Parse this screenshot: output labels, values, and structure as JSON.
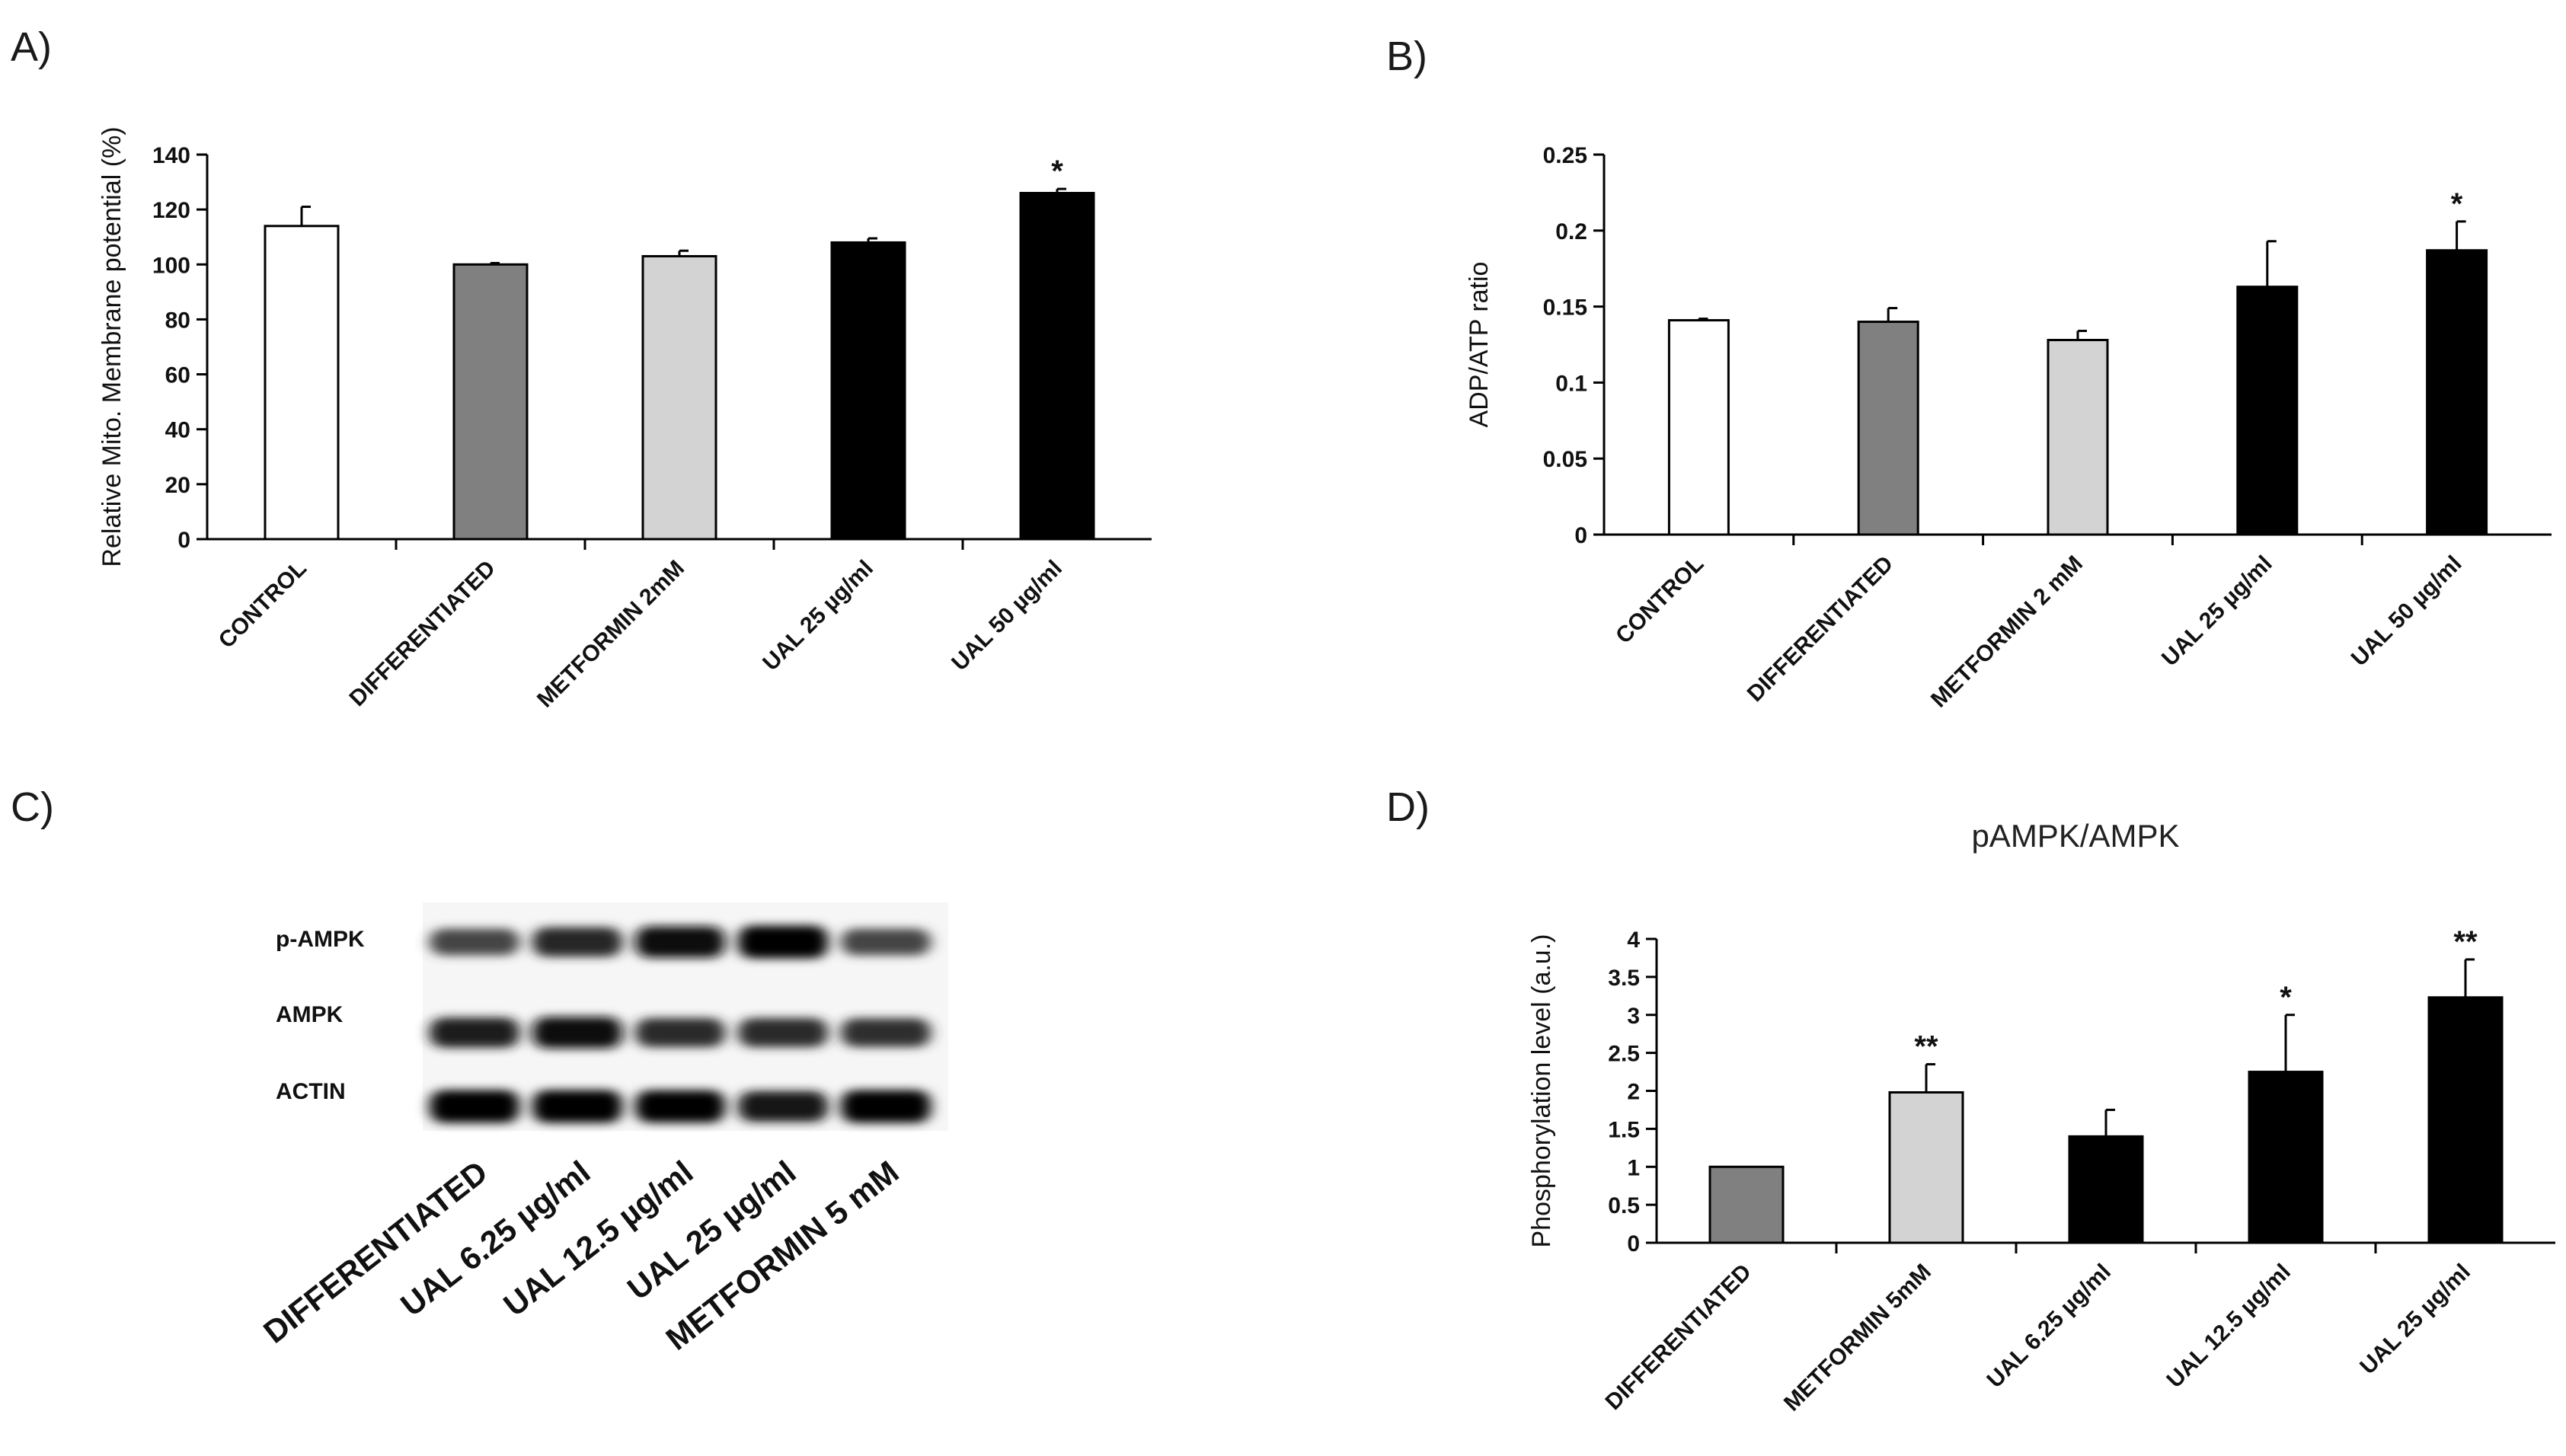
{
  "panel_labels": {
    "a": "A)",
    "b": "B)",
    "c": "C)",
    "d": "D)"
  },
  "chart_data": [
    {
      "panel": "A)",
      "type": "bar",
      "title": "",
      "xlabel": "",
      "ylabel": "Relative Mito. Membrane potential (%)",
      "ylim": [
        0,
        140
      ],
      "yticks": [
        0,
        20,
        40,
        60,
        80,
        100,
        120,
        140
      ],
      "grid": false,
      "categories": [
        "CONTROL",
        "DIFFERENTIATED",
        "METFORMIN 2mM",
        "UAL 25 µg/ml",
        "UAL 50 µg/ml"
      ],
      "values": [
        114,
        100,
        103,
        108,
        126
      ],
      "errors": [
        7,
        0.5,
        2,
        1.5,
        1.5
      ],
      "colors": [
        "#ffffff",
        "#808080",
        "#d3d3d3",
        "#000000",
        "#000000"
      ],
      "significance": [
        "",
        "",
        "",
        "",
        "*"
      ]
    },
    {
      "panel": "B)",
      "type": "bar",
      "title": "",
      "xlabel": "",
      "ylabel": "ADP/ATP ratio",
      "ylim": [
        0,
        0.25
      ],
      "yticks": [
        0,
        0.05,
        0.1,
        0.15,
        0.2,
        0.25
      ],
      "grid": false,
      "categories": [
        "CONTROL",
        "DIFFERENTIATED",
        "METFORMIN 2 mM",
        "UAL 25 µg/ml",
        "UAL 50 µg/ml"
      ],
      "values": [
        0.141,
        0.14,
        0.128,
        0.163,
        0.187
      ],
      "errors": [
        0.001,
        0.009,
        0.006,
        0.03,
        0.019
      ],
      "colors": [
        "#ffffff",
        "#808080",
        "#d3d3d3",
        "#000000",
        "#000000"
      ],
      "significance": [
        "",
        "",
        "",
        "",
        "*"
      ]
    },
    {
      "panel": "D)",
      "type": "bar",
      "title": "pAMPK/AMPK",
      "xlabel": "",
      "ylabel": "Phosphorylation level (a.u.)",
      "ylim": [
        0,
        4
      ],
      "yticks": [
        0,
        0.5,
        1,
        1.5,
        2,
        2.5,
        3,
        3.5,
        4
      ],
      "grid": false,
      "categories": [
        "DIFFERENTIATED",
        "METFORMIN 5mM",
        "UAL 6.25 µg/ml",
        "UAL 12.5 µg/ml",
        "UAL 25 µg/ml"
      ],
      "values": [
        1.0,
        1.98,
        1.4,
        2.25,
        3.23
      ],
      "errors": [
        0,
        0.37,
        0.35,
        0.75,
        0.5
      ],
      "colors": [
        "#808080",
        "#d3d3d3",
        "#000000",
        "#000000",
        "#000000"
      ],
      "significance": [
        "",
        "**",
        "",
        "*",
        "**"
      ]
    }
  ],
  "western_blot": {
    "panel": "C)",
    "rows": [
      {
        "label": "p-AMPK",
        "intensities": [
          0.55,
          0.75,
          0.9,
          1.0,
          0.55
        ]
      },
      {
        "label": "AMPK",
        "intensities": [
          0.8,
          0.9,
          0.72,
          0.72,
          0.7
        ]
      },
      {
        "label": "ACTIN",
        "intensities": [
          1.0,
          1.0,
          0.97,
          0.85,
          1.0
        ]
      }
    ],
    "lanes": [
      "DIFFERENTIATED",
      "UAL 6.25 µg/ml",
      "UAL 12.5 µg/ml",
      "UAL 25 µg/ml",
      "METFORMIN 5 mM"
    ]
  }
}
